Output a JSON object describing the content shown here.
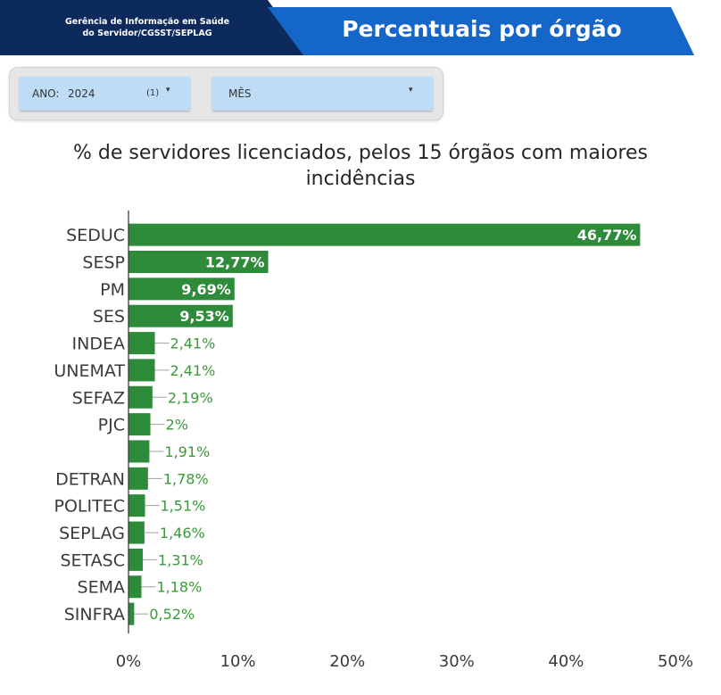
{
  "header": {
    "org_line1": "Gerência de Informação em Saúde",
    "org_line2": "do Servidor/CGSST/SEPLAG",
    "title": "Percentuais por órgão"
  },
  "filters": {
    "year_label": "ANO:",
    "year_value": "2024",
    "year_count": "(1)",
    "month_label": "MÊS",
    "caret": "▾"
  },
  "chart_data": {
    "type": "bar",
    "orientation": "horizontal",
    "title_line1": "% de servidores licenciados, pelos 15 órgãos com maiores",
    "title_line2": "incidências",
    "categories": [
      "SEDUC",
      "SESP",
      "PM",
      "SES",
      "INDEA",
      "UNEMAT",
      "SEFAZ",
      "PJC",
      "",
      "DETRAN",
      "POLITEC",
      "SEPLAG",
      "SETASC",
      "SEMA",
      "SINFRA"
    ],
    "values": [
      46.77,
      12.77,
      9.69,
      9.53,
      2.41,
      2.41,
      2.19,
      2.0,
      1.91,
      1.78,
      1.51,
      1.46,
      1.31,
      1.18,
      0.52
    ],
    "value_labels": [
      "46,77%",
      "12,77%",
      "9,69%",
      "9,53%",
      "2,41%",
      "2,41%",
      "2,19%",
      "2%",
      "1,91%",
      "1,78%",
      "1,51%",
      "1,46%",
      "1,31%",
      "1,18%",
      "0,52%"
    ],
    "x_ticks": [
      0,
      10,
      20,
      30,
      40,
      50
    ],
    "x_tick_labels": [
      "0%",
      "10%",
      "20%",
      "30%",
      "40%",
      "50%"
    ],
    "xlim": [
      0,
      50
    ],
    "bar_color": "#2e8b3a",
    "label_color_outside": "#3a9a3a",
    "grid": false
  }
}
